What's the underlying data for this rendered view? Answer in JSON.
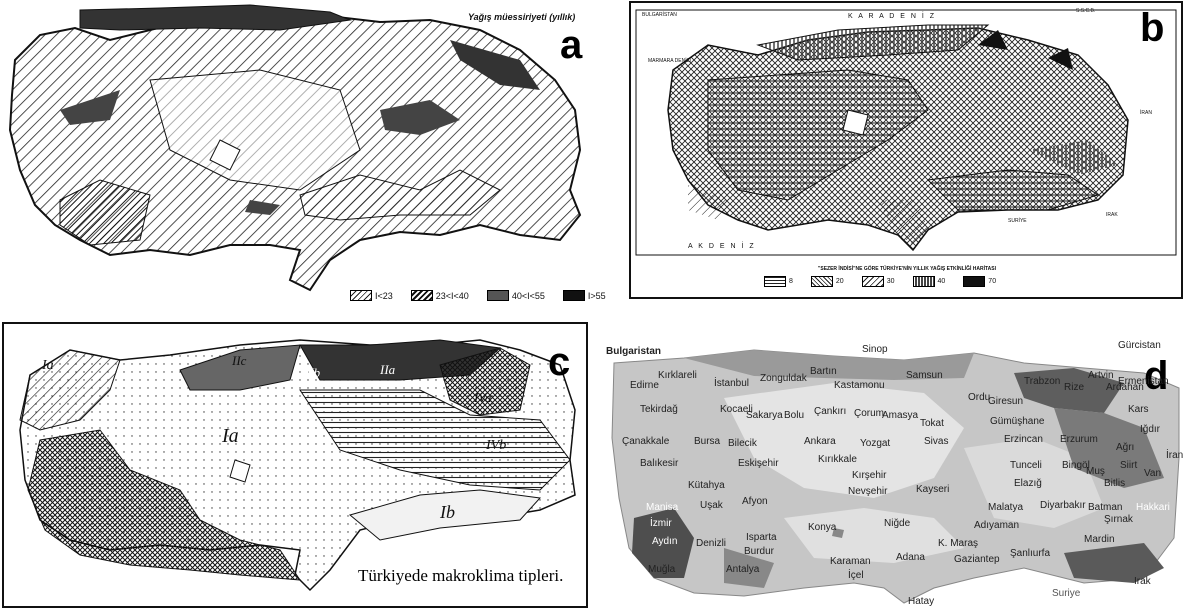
{
  "panel_a": {
    "letter": "a",
    "title": "Yağış müessiriyeti (yıllık)",
    "legend": [
      "I<23",
      "23<I<40",
      "40<I<55",
      "I>55"
    ]
  },
  "panel_b": {
    "letter": "b",
    "sea_top": "K A R A D E N İ Z",
    "sea_bottom": "A K D E N İ Z",
    "labels": [
      "BULGARİSTAN",
      "S.S.C.B.",
      "İRAN",
      "IRAK",
      "SURİYE",
      "MARMARA DENİZİ"
    ],
    "legend_title": "\"SEZER İNDİSİ\"NE GÖRE TÜRKİYE'NİN YILLIK YAĞIŞ ETKİNLİĞİ HARİTASI",
    "legend": [
      "8",
      "20",
      "30",
      "40",
      "70"
    ]
  },
  "panel_c": {
    "letter": "c",
    "caption": "Türkiyede makroklima tipleri.",
    "zones": [
      "Ia",
      "IIc",
      "IIb",
      "IIa",
      "IVa",
      "IVb",
      "Ia",
      "Ib"
    ]
  },
  "panel_d": {
    "letter": "d",
    "countries": [
      "Bulgaristan",
      "Gürcistan",
      "Ermenistan",
      "İran",
      "Irak",
      "Suriye"
    ],
    "cities": [
      "Sinop",
      "Edirne",
      "Kırklareli",
      "İstanbul",
      "Zonguldak",
      "Bartın",
      "Kastamonu",
      "Samsun",
      "Trabzon",
      "Rize",
      "Artvin",
      "Ardahan",
      "Tekirdağ",
      "Kocaeli",
      "Sakarya",
      "Bolu",
      "Çankırı",
      "Çorum",
      "Amasya",
      "Tokat",
      "Ordu",
      "Giresun",
      "Gümüşhane",
      "Kars",
      "Iğdır",
      "Çanakkale",
      "Bursa",
      "Bilecik",
      "Ankara",
      "Yozgat",
      "Sivas",
      "Erzincan",
      "Erzurum",
      "Ağrı",
      "Balıkesir",
      "Eskişehir",
      "Kırıkkale",
      "Tunceli",
      "Bingöl",
      "Muş",
      "Van",
      "Kütahya",
      "Kırşehir",
      "Elazığ",
      "Bitlis",
      "Siirt",
      "Manisa",
      "Uşak",
      "Afyon",
      "Nevşehir",
      "Kayseri",
      "Malatya",
      "Diyarbakır",
      "Batman",
      "Hakkari",
      "Şırnak",
      "İzmir",
      "Aydın",
      "Denizli",
      "Isparta",
      "Burdur",
      "Konya",
      "Niğde",
      "Adıyaman",
      "K. Maraş",
      "Mardin",
      "Muğla",
      "Antalya",
      "Karaman",
      "Adana",
      "Gaziantep",
      "Şanlıurfa",
      "İçel",
      "Hatay"
    ]
  }
}
